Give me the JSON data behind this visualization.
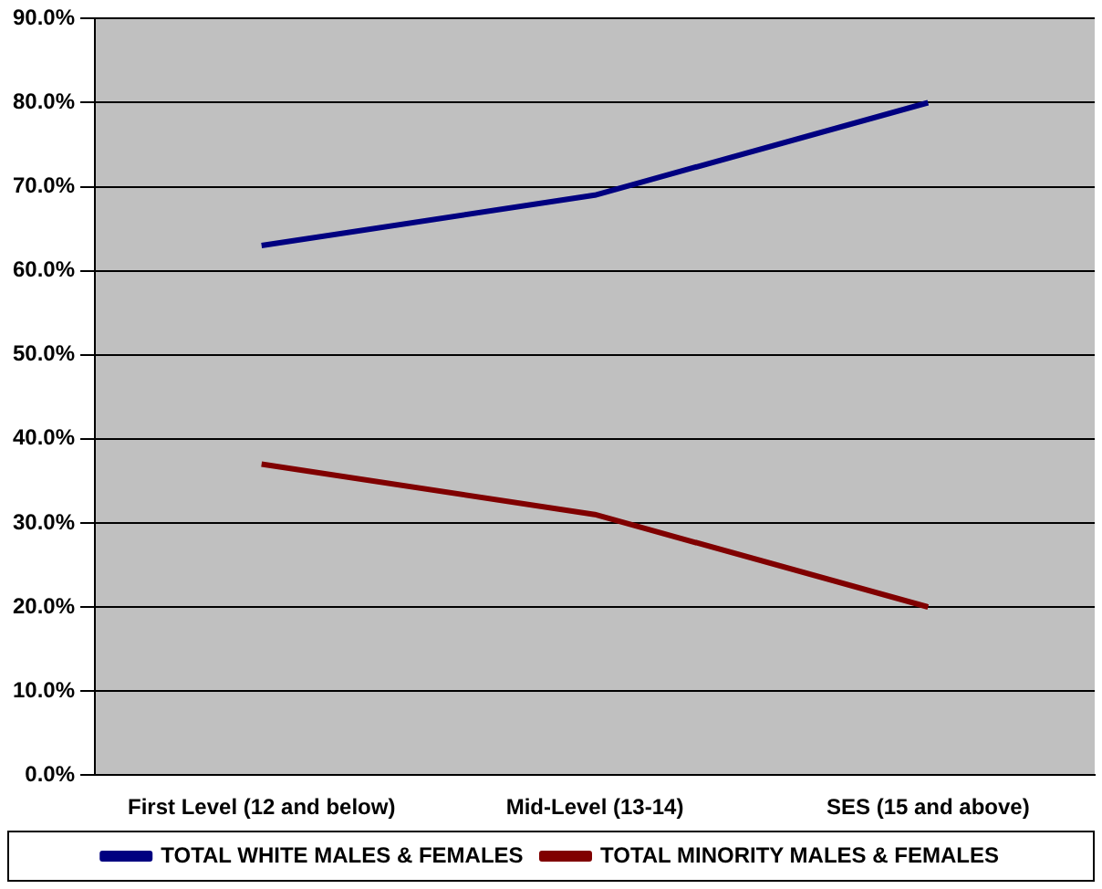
{
  "chart_data": {
    "type": "line",
    "categories": [
      "First Level (12 and below)",
      "Mid-Level (13-14)",
      "SES (15 and above)"
    ],
    "series": [
      {
        "name": "TOTAL WHITE MALES & FEMALES",
        "color": "#000080",
        "values": [
          63,
          69,
          80
        ]
      },
      {
        "name": "TOTAL MINORITY MALES & FEMALES",
        "color": "#800000",
        "values": [
          37,
          31,
          20
        ]
      }
    ],
    "ylim": [
      0,
      90
    ],
    "yticks": [
      {
        "value": 0,
        "label": "0.0%"
      },
      {
        "value": 10,
        "label": "10.0%"
      },
      {
        "value": 20,
        "label": "20.0%"
      },
      {
        "value": 30,
        "label": "30.0%"
      },
      {
        "value": 40,
        "label": "40.0%"
      },
      {
        "value": 50,
        "label": "50.0%"
      },
      {
        "value": 60,
        "label": "60.0%"
      },
      {
        "value": 70,
        "label": "70.0%"
      },
      {
        "value": 80,
        "label": "80.0%"
      },
      {
        "value": 90,
        "label": "90.0%"
      }
    ],
    "grid": "y",
    "legend": "bottom",
    "marker": "none",
    "line_style": "solid"
  }
}
